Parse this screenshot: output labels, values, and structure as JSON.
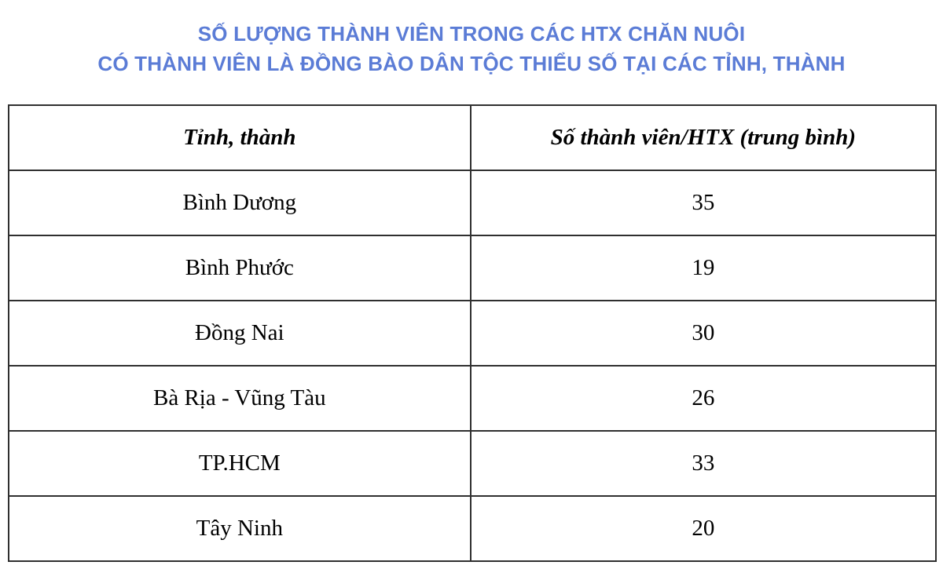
{
  "title": {
    "line1": "SỐ LƯỢNG THÀNH VIÊN TRONG CÁC HTX CHĂN NUÔI",
    "line2": "CÓ THÀNH VIÊN LÀ ĐỒNG BÀO DÂN TỘC THIỂU SỐ TẠI CÁC TỈNH, THÀNH",
    "color": "#5b7cd6"
  },
  "table": {
    "headers": [
      "Tỉnh, thành",
      "Số thành viên/HTX (trung bình)"
    ],
    "rows": [
      {
        "province": "Bình Dương",
        "value": "35"
      },
      {
        "province": "Bình Phước",
        "value": "19"
      },
      {
        "province": "Đồng Nai",
        "value": "30"
      },
      {
        "province": "Bà Rịa - Vũng Tàu",
        "value": "26"
      },
      {
        "province": "TP.HCM",
        "value": "33"
      },
      {
        "province": "Tây Ninh",
        "value": "20"
      }
    ]
  },
  "chart_data": {
    "type": "table",
    "title": "SỐ LƯỢNG THÀNH VIÊN TRONG CÁC HTX CHĂN NUÔI CÓ THÀNH VIÊN LÀ ĐỒNG BÀO DÂN TỘC THIỂU SỐ TẠI CÁC TỈNH, THÀNH",
    "columns": [
      "Tỉnh, thành",
      "Số thành viên/HTX (trung bình)"
    ],
    "categories": [
      "Bình Dương",
      "Bình Phước",
      "Đồng Nai",
      "Bà Rịa - Vũng Tàu",
      "TP.HCM",
      "Tây Ninh"
    ],
    "values": [
      35,
      19,
      30,
      26,
      33,
      20
    ]
  }
}
